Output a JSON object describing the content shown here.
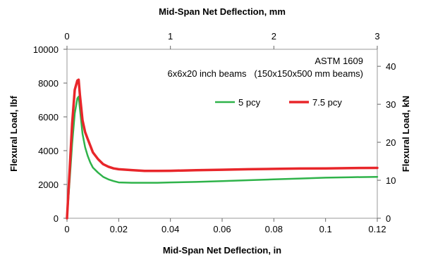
{
  "chart_data": {
    "type": "line",
    "title": "",
    "xlabel": "Mid-Span Net Deflection, in",
    "ylabel": "Flexural Load, lbf",
    "x2label": "Mid-Span Net Deflection, mm",
    "y2label": "Flexural Load, kN",
    "xlim": [
      0,
      0.12
    ],
    "ylim": [
      0,
      10000
    ],
    "x2lim": [
      0,
      3
    ],
    "y2lim": [
      0,
      44.48
    ],
    "x_ticks": [
      "0",
      "0.02",
      "0.04",
      "0.06",
      "0.08",
      "0.1",
      "0.12"
    ],
    "y_ticks": [
      "0",
      "2000",
      "4000",
      "6000",
      "8000",
      "10000"
    ],
    "x2_ticks": [
      "0",
      "1",
      "2",
      "3"
    ],
    "y2_ticks": [
      "0",
      "10",
      "20",
      "30",
      "40"
    ],
    "annotations": [
      "ASTM 1609",
      "6x6x20 inch beams   (150x150x500 mm beams)"
    ],
    "legend_placement": "right-middle",
    "grid": false,
    "series": [
      {
        "name": "5 pcy",
        "color": "#2fb34a",
        "x": [
          0,
          0.001,
          0.002,
          0.003,
          0.004,
          0.0045,
          0.005,
          0.006,
          0.007,
          0.008,
          0.009,
          0.01,
          0.012,
          0.014,
          0.016,
          0.018,
          0.02,
          0.025,
          0.03,
          0.035,
          0.04,
          0.05,
          0.06,
          0.07,
          0.08,
          0.09,
          0.1,
          0.11,
          0.12
        ],
        "y": [
          0,
          2200,
          4400,
          6200,
          7100,
          7200,
          6500,
          5000,
          4200,
          3700,
          3300,
          3000,
          2700,
          2450,
          2300,
          2200,
          2120,
          2100,
          2100,
          2100,
          2120,
          2150,
          2200,
          2250,
          2300,
          2350,
          2400,
          2430,
          2450
        ]
      },
      {
        "name": "7.5 pcy",
        "color": "#e8262a",
        "x": [
          0,
          0.001,
          0.002,
          0.003,
          0.004,
          0.0045,
          0.005,
          0.006,
          0.007,
          0.008,
          0.009,
          0.01,
          0.012,
          0.014,
          0.016,
          0.018,
          0.02,
          0.025,
          0.03,
          0.035,
          0.04,
          0.05,
          0.06,
          0.07,
          0.08,
          0.09,
          0.1,
          0.11,
          0.12
        ],
        "y": [
          0,
          2800,
          5600,
          7600,
          8150,
          8200,
          7300,
          5800,
          5100,
          4700,
          4300,
          3900,
          3500,
          3200,
          3050,
          2950,
          2900,
          2850,
          2800,
          2800,
          2810,
          2840,
          2870,
          2900,
          2920,
          2940,
          2950,
          2970,
          2980
        ]
      }
    ]
  }
}
